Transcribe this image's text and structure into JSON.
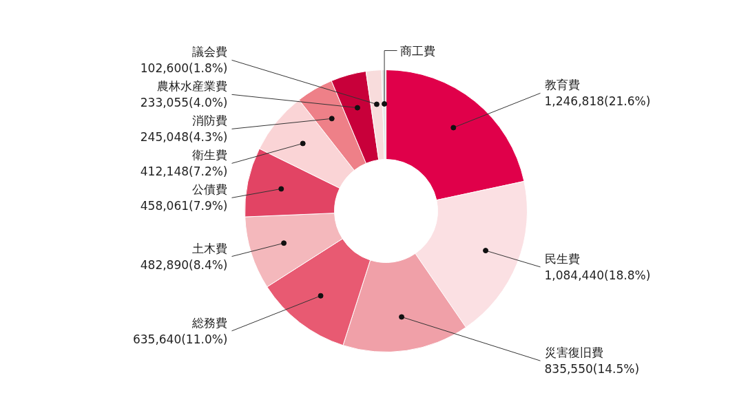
{
  "chart_data": {
    "type": "donut",
    "categories": [
      "教育費",
      "民生費",
      "災害復旧費",
      "総務費",
      "土木費",
      "公債費",
      "衛生費",
      "消防費",
      "農林水産業費",
      "議会費",
      "商工費"
    ],
    "values": [
      1246818,
      1084440,
      835550,
      635640,
      482890,
      458061,
      412148,
      245048,
      233055,
      102600,
      28800
    ],
    "value_labels": [
      "1,246,818(21.6%)",
      "1,084,440(18.8%)",
      "835,550(14.5%)",
      "635,640(11.0%)",
      "482,890(8.4%)",
      "458,061(7.9%)",
      "412,148(7.2%)",
      "245,048(4.3%)",
      "233,055(4.0%)",
      "102,600(1.8%)",
      null
    ],
    "colors": [
      "#e0004a",
      "#fbe0e3",
      "#f0a0a8",
      "#e85a72",
      "#f4b8bc",
      "#e24464",
      "#fad4d6",
      "#ee8088",
      "#c8003a",
      "#f8dcdc",
      "#e6e6e6"
    ]
  }
}
